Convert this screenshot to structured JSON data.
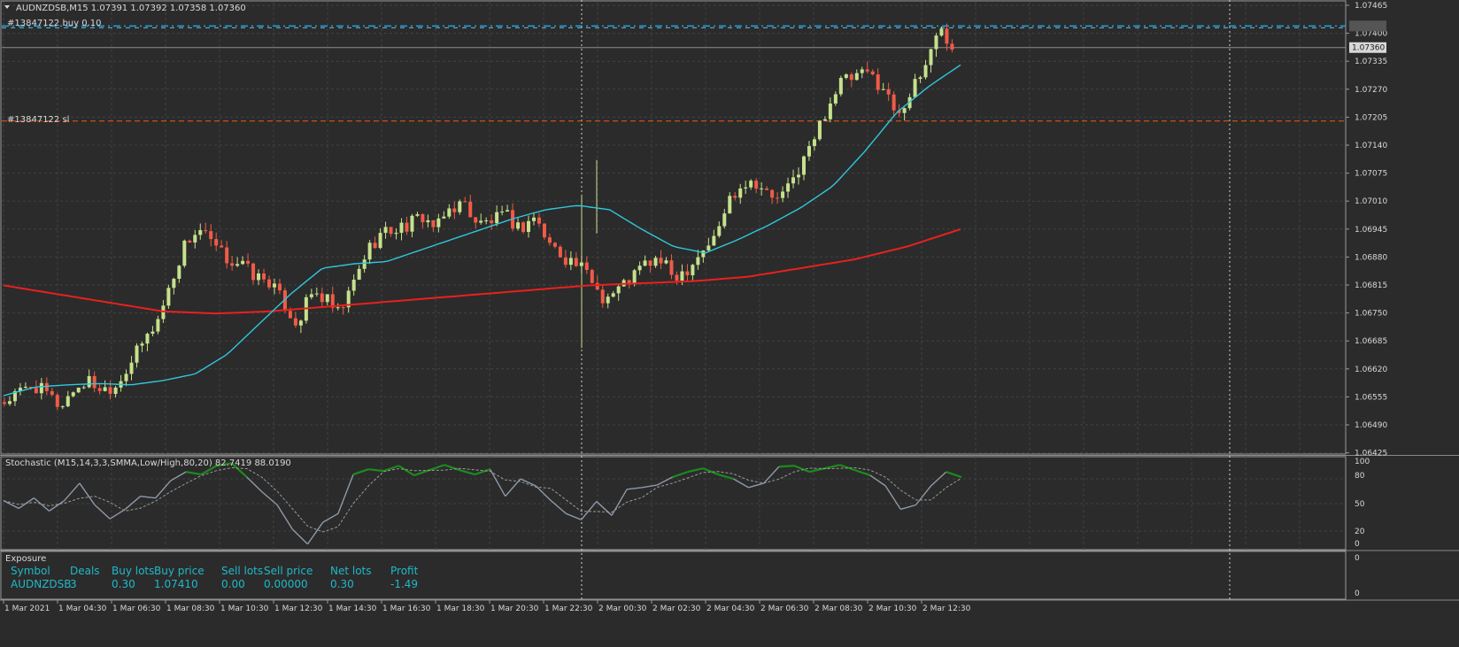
{
  "header": {
    "symbol_info": "AUDNZDSB,M15  1.07391 1.07392 1.07358 1.07360",
    "order_label": "#13847122 buy 0.10",
    "sl_label": "#13847122 sl",
    "current_price": "1.07360"
  },
  "stochastic": {
    "label": "Stochastic (M15,14,3,3,SMMA,Low/High,80,20) 82.7419 88.0190",
    "levels": [
      "100",
      "80",
      "50",
      "20",
      "0"
    ]
  },
  "exposure": {
    "title": "Exposure",
    "columns": [
      "Symbol",
      "Deals",
      "Buy lots",
      "Buy price",
      "Sell lots",
      "Sell price",
      "Net lots",
      "Profit"
    ],
    "row": [
      "AUDNZDSB",
      "3",
      "0.30",
      "1.07410",
      "0.00",
      "0.00000",
      "0.30",
      "-1.49"
    ],
    "axis": [
      "0",
      "0"
    ]
  },
  "colors": {
    "background": "#2b2b2b",
    "bull_candle": "#c6e18c",
    "bear_candle": "#f05b47",
    "fast_ma": "#2ec8dc",
    "slow_ma": "#e8211e",
    "buy_line": "#1aa7e8",
    "sl_line": "#f05b12",
    "stoch_main": "#8e9aaa",
    "stoch_overbought": "#1b8c1b",
    "stoch_oversold": "#e8211e"
  },
  "chart_data": {
    "type": "candlestick",
    "symbol": "AUDNZDSB",
    "timeframe": "M15",
    "ylim": [
      1.0642,
      1.0747
    ],
    "y_ticks": [
      "1.07465",
      "1.07400",
      "1.07335",
      "1.07270",
      "1.07205",
      "1.07140",
      "1.07075",
      "1.07010",
      "1.06945",
      "1.06880",
      "1.06815",
      "1.06750",
      "1.06685",
      "1.06620",
      "1.06555",
      "1.06490",
      "1.06425"
    ],
    "x_ticks": [
      "1 Mar 2021",
      "1 Mar 04:30",
      "1 Mar 06:30",
      "1 Mar 08:30",
      "1 Mar 10:30",
      "1 Mar 12:30",
      "1 Mar 14:30",
      "1 Mar 16:30",
      "1 Mar 18:30",
      "1 Mar 20:30",
      "1 Mar 22:30",
      "2 Mar 00:30",
      "2 Mar 02:30",
      "2 Mar 04:30",
      "2 Mar 06:30",
      "2 Mar 08:30",
      "2 Mar 10:30",
      "2 Mar 12:30"
    ],
    "buy_price": 1.0741,
    "stop_loss": 1.0719,
    "current_price": 1.0736,
    "ohlc_anchors": [
      1.0654,
      1.0656,
      1.0658,
      1.0656,
      1.0653,
      1.0657,
      1.0659,
      1.0657,
      1.0658,
      1.0663,
      1.0668,
      1.0673,
      1.0682,
      1.0691,
      1.0694,
      1.069,
      1.0687,
      1.0686,
      1.0683,
      1.0682,
      1.0677,
      1.0672,
      1.0679,
      1.0678,
      1.0674,
      1.0681,
      1.0689,
      1.0693,
      1.0694,
      1.0695,
      1.0697,
      1.0694,
      1.0699,
      1.07,
      1.0695,
      1.0696,
      1.0697,
      1.0694,
      1.0697,
      1.0691,
      1.0688,
      1.0686,
      1.0683,
      1.0678,
      1.068,
      1.0683,
      1.0686,
      1.0687,
      1.0683,
      1.0685,
      1.0689,
      1.0692,
      1.0701,
      1.0705,
      1.0705,
      1.0701,
      1.0702,
      1.0708,
      1.0714,
      1.0722,
      1.0728,
      1.0729,
      1.073,
      1.0727,
      1.0721,
      1.0725,
      1.0731,
      1.0741,
      1.0736
    ],
    "fast_ma_anchors": [
      1.06555,
      1.06575,
      1.0658,
      1.06583,
      1.0658,
      1.0659,
      1.06605,
      1.0665,
      1.0672,
      1.0679,
      1.0685,
      1.0686,
      1.06865,
      1.0689,
      1.06915,
      1.0694,
      1.06965,
      1.06985,
      1.06995,
      1.06985,
      1.0694,
      1.069,
      1.06885,
      1.06915,
      1.0695,
      1.0699,
      1.0704,
      1.0712,
      1.0721,
      1.0727,
      1.0732
    ],
    "slow_ma_anchors": [
      1.0681,
      1.0679,
      1.0677,
      1.0675,
      1.06745,
      1.0675,
      1.0676,
      1.0677,
      1.0678,
      1.0679,
      1.068,
      1.0681,
      1.06815,
      1.0682,
      1.0683,
      1.0685,
      1.0687,
      1.069,
      1.0694
    ],
    "stochastic_main": [
      55,
      46,
      58,
      43,
      55,
      75,
      50,
      34,
      45,
      60,
      58,
      78,
      88,
      85,
      95,
      98,
      82,
      65,
      50,
      22,
      5,
      30,
      40,
      85,
      91,
      89,
      95,
      84,
      90,
      96,
      90,
      85,
      91,
      60,
      80,
      72,
      55,
      40,
      33,
      54,
      38,
      68,
      70,
      73,
      82,
      88,
      92,
      85,
      80,
      70,
      75,
      94,
      95,
      88,
      92,
      96,
      90,
      84,
      72,
      45,
      50,
      72,
      88,
      82
    ]
  }
}
